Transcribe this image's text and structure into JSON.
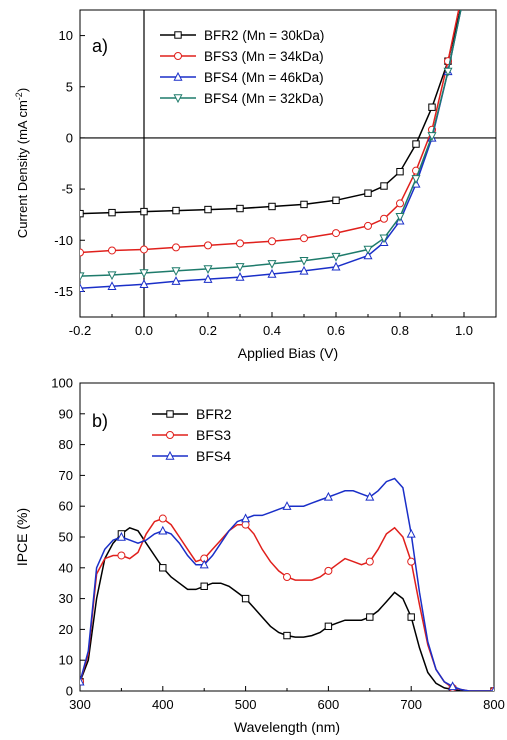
{
  "chart_data": [
    {
      "type": "line",
      "panel_label": "a)",
      "xlabel": "Applied Bias (V)",
      "ylabel": "Current Density (mA cm",
      "ylabel_sup": "-2",
      "ylabel_close": ")",
      "xlim": [
        -0.2,
        1.1
      ],
      "ylim": [
        -17.5,
        12.5
      ],
      "xticks": [
        -0.2,
        0.0,
        0.2,
        0.4,
        0.6,
        0.8,
        1.0
      ],
      "xtick_labels": [
        "-0.2",
        "0.0",
        "0.2",
        "0.4",
        "0.6",
        "0.8",
        "1.0"
      ],
      "yticks": [
        -15,
        -10,
        -5,
        0,
        5,
        10
      ],
      "ytick_labels": [
        "-15",
        "-10",
        "-5",
        "0",
        "5",
        "10"
      ],
      "grid": false,
      "legend_position": "top-center",
      "series": [
        {
          "name": "BFR2 (Mn = 30kDa)",
          "color": "#000000",
          "marker": "square",
          "x": [
            -0.2,
            -0.1,
            0.0,
            0.1,
            0.2,
            0.3,
            0.4,
            0.5,
            0.6,
            0.7,
            0.75,
            0.8,
            0.85,
            0.9,
            0.95,
            1.0
          ],
          "y": [
            -7.4,
            -7.3,
            -7.2,
            -7.1,
            -7.0,
            -6.9,
            -6.7,
            -6.5,
            -6.1,
            -5.4,
            -4.7,
            -3.3,
            -0.6,
            3.0,
            7.5,
            14.0
          ]
        },
        {
          "name": "BFS3 (Mn = 34kDa)",
          "color": "#e0201c",
          "marker": "circle",
          "x": [
            -0.2,
            -0.1,
            0.0,
            0.1,
            0.2,
            0.3,
            0.4,
            0.5,
            0.6,
            0.7,
            0.75,
            0.8,
            0.85,
            0.9,
            0.95,
            1.0
          ],
          "y": [
            -11.2,
            -11.0,
            -10.9,
            -10.7,
            -10.5,
            -10.3,
            -10.1,
            -9.8,
            -9.3,
            -8.6,
            -7.9,
            -6.4,
            -3.2,
            0.8,
            7.5,
            15.0
          ]
        },
        {
          "name": "BFS4 (Mn = 46kDa)",
          "color": "#1a2fc8",
          "marker": "triangle-up",
          "x": [
            -0.2,
            -0.1,
            0.0,
            0.1,
            0.2,
            0.3,
            0.4,
            0.5,
            0.6,
            0.7,
            0.75,
            0.8,
            0.85,
            0.9,
            0.95,
            1.0
          ],
          "y": [
            -14.7,
            -14.5,
            -14.3,
            -14.0,
            -13.8,
            -13.6,
            -13.3,
            -13.0,
            -12.6,
            -11.5,
            -10.2,
            -8.1,
            -4.5,
            0.0,
            6.5,
            14.0
          ]
        },
        {
          "name": "BFS4 (Mn = 32kDa)",
          "color": "#1e7b6b",
          "marker": "triangle-down",
          "x": [
            -0.2,
            -0.1,
            0.0,
            0.1,
            0.2,
            0.3,
            0.4,
            0.5,
            0.6,
            0.7,
            0.75,
            0.8,
            0.85,
            0.9,
            0.95,
            1.0
          ],
          "y": [
            -13.5,
            -13.4,
            -13.2,
            -13.0,
            -12.8,
            -12.6,
            -12.3,
            -12.0,
            -11.6,
            -10.9,
            -9.8,
            -7.7,
            -4.0,
            0.2,
            6.5,
            14.0
          ]
        }
      ]
    },
    {
      "type": "line",
      "panel_label": "b)",
      "xlabel": "Wavelength (nm)",
      "ylabel": "IPCE (%)",
      "xlim": [
        300,
        800
      ],
      "ylim": [
        0,
        100
      ],
      "xticks": [
        300,
        400,
        500,
        600,
        700,
        800
      ],
      "xtick_labels": [
        "300",
        "400",
        "500",
        "600",
        "700",
        "800"
      ],
      "yticks": [
        0,
        10,
        20,
        30,
        40,
        50,
        60,
        70,
        80,
        90,
        100
      ],
      "ytick_labels": [
        "0",
        "10",
        "20",
        "30",
        "40",
        "50",
        "60",
        "70",
        "80",
        "90",
        "100"
      ],
      "grid": false,
      "legend_position": "top-left",
      "series": [
        {
          "name": "BFR2",
          "color": "#000000",
          "marker": "square",
          "x": [
            300,
            310,
            320,
            330,
            340,
            350,
            360,
            370,
            380,
            390,
            400,
            410,
            420,
            430,
            440,
            450,
            460,
            470,
            480,
            490,
            500,
            510,
            520,
            530,
            540,
            550,
            560,
            570,
            580,
            590,
            600,
            610,
            620,
            630,
            640,
            650,
            660,
            670,
            680,
            690,
            700,
            710,
            720,
            730,
            740,
            750,
            760,
            770,
            780,
            790,
            800
          ],
          "y": [
            3,
            10,
            30,
            43,
            48,
            51,
            53,
            52,
            48,
            44,
            40,
            37,
            35,
            33,
            33,
            34,
            35,
            35,
            34,
            32,
            30,
            27,
            24,
            21,
            19,
            18,
            17.5,
            17.5,
            18,
            19,
            21,
            22,
            23,
            23,
            23,
            24,
            26,
            29,
            32,
            30,
            24,
            14,
            6,
            2.5,
            1,
            0.5,
            0,
            0,
            0,
            0,
            0
          ]
        },
        {
          "name": "BFS3",
          "color": "#e0201c",
          "marker": "circle",
          "x": [
            300,
            310,
            320,
            330,
            340,
            350,
            360,
            370,
            380,
            390,
            400,
            410,
            420,
            430,
            440,
            450,
            460,
            470,
            480,
            490,
            500,
            510,
            520,
            530,
            540,
            550,
            560,
            570,
            580,
            590,
            600,
            610,
            620,
            630,
            640,
            650,
            660,
            670,
            680,
            690,
            700,
            710,
            720,
            730,
            740,
            750,
            760,
            770,
            780,
            790,
            800
          ],
          "y": [
            3,
            12,
            38,
            43,
            44,
            44,
            43,
            45,
            51,
            55,
            56,
            54,
            50,
            46,
            42,
            43,
            46,
            49,
            52,
            54,
            54,
            51,
            46,
            42,
            39,
            37,
            36,
            36,
            36,
            37,
            39,
            41,
            43,
            42,
            41,
            42,
            46,
            51,
            53,
            50,
            42,
            28,
            15,
            7,
            3,
            1,
            0.5,
            0,
            0,
            0,
            0
          ]
        },
        {
          "name": "BFS4",
          "color": "#1a2fc8",
          "marker": "triangle-up",
          "x": [
            300,
            310,
            320,
            330,
            340,
            350,
            360,
            370,
            380,
            390,
            400,
            410,
            420,
            430,
            440,
            450,
            460,
            470,
            480,
            490,
            500,
            510,
            520,
            530,
            540,
            550,
            560,
            570,
            580,
            590,
            600,
            610,
            620,
            630,
            640,
            650,
            660,
            670,
            680,
            690,
            700,
            710,
            720,
            730,
            740,
            750,
            760,
            770,
            780,
            790,
            800
          ],
          "y": [
            3,
            13,
            40,
            46,
            49,
            50,
            49,
            48,
            49,
            51,
            52,
            51,
            48,
            44,
            41,
            41,
            44,
            48,
            52,
            55,
            56,
            57,
            57,
            58,
            59,
            60,
            60,
            60,
            61,
            62,
            63,
            64,
            65,
            65,
            64,
            63,
            65,
            68,
            69,
            66,
            51,
            32,
            16,
            7,
            3,
            1.5,
            0.5,
            0,
            0,
            0,
            0
          ]
        }
      ]
    }
  ]
}
